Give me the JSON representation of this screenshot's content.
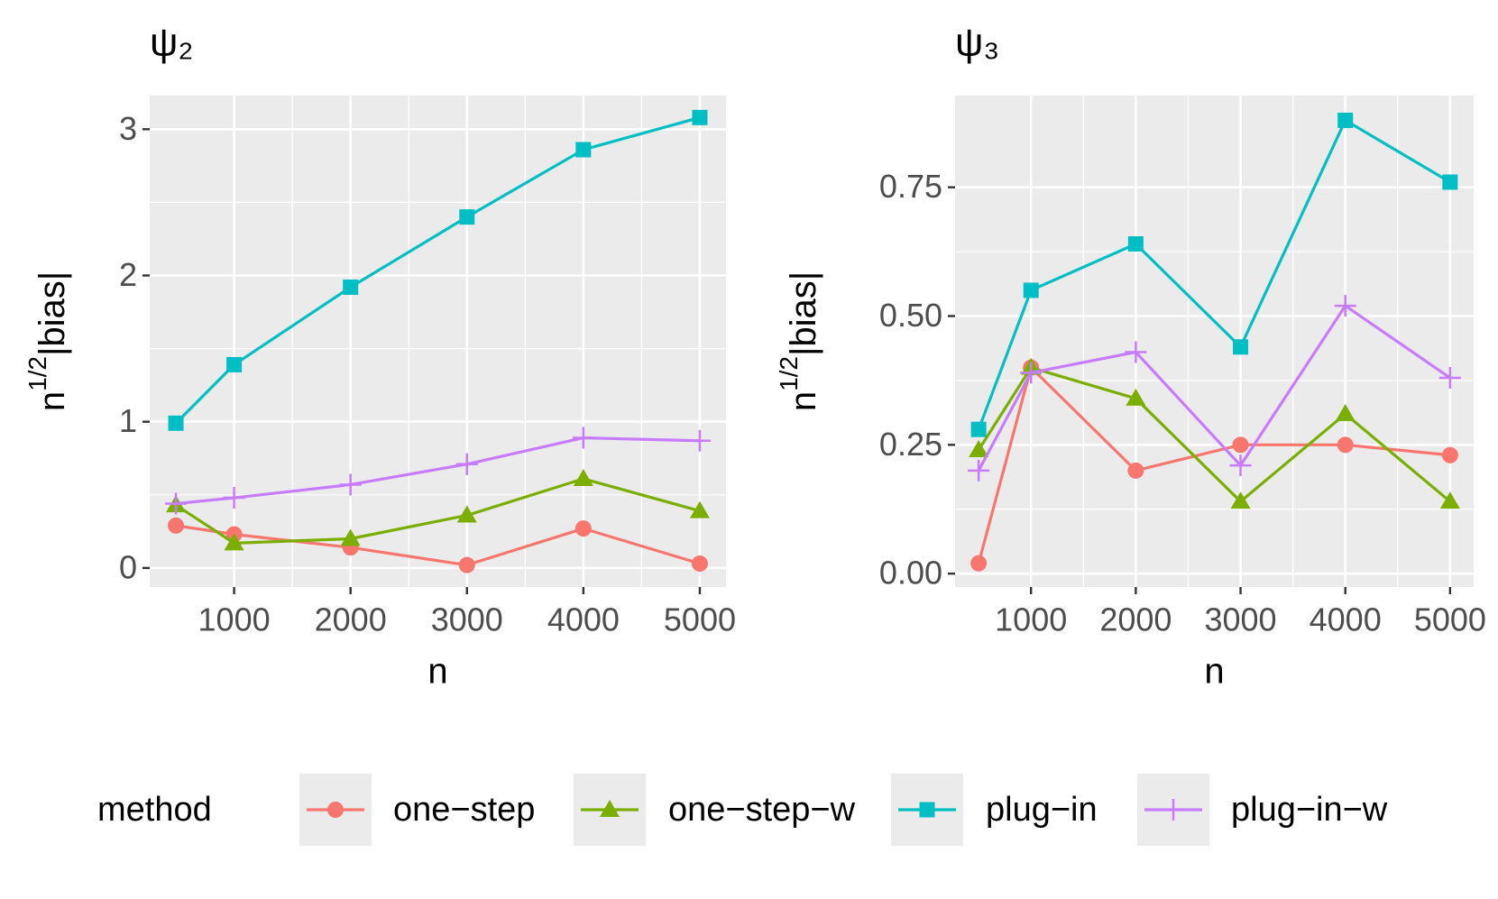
{
  "chart_data": [
    {
      "type": "line",
      "title": "ψ₂",
      "x_label": "n",
      "y_label": {
        "base": "n",
        "superscript": "1/2",
        "text": "|bias|"
      },
      "x": [
        500,
        1000,
        2000,
        3000,
        4000,
        5000
      ],
      "xlim": [
        275,
        5225
      ],
      "xticks": [
        1000,
        2000,
        3000,
        4000,
        5000
      ],
      "ylim": [
        -0.13,
        3.23
      ],
      "yticks": [
        0,
        1,
        2,
        3
      ],
      "grid": true,
      "series": [
        {
          "name": "one−step",
          "color": "#F8766D",
          "shape": "circle",
          "values": [
            0.29,
            0.23,
            0.14,
            0.02,
            0.27,
            0.03
          ]
        },
        {
          "name": "one−step−w",
          "color": "#7CAE00",
          "shape": "triangle",
          "values": [
            0.43,
            0.17,
            0.2,
            0.36,
            0.61,
            0.39
          ]
        },
        {
          "name": "plug−in",
          "color": "#00BFC4",
          "shape": "square",
          "values": [
            0.99,
            1.39,
            1.92,
            2.4,
            2.86,
            3.08
          ]
        },
        {
          "name": "plug−in−w",
          "color": "#C77CFF",
          "shape": "plus",
          "values": [
            0.44,
            0.48,
            0.57,
            0.71,
            0.89,
            0.87
          ]
        }
      ]
    },
    {
      "type": "line",
      "title": "ψ₃",
      "x_label": "n",
      "y_label": {
        "base": "n",
        "superscript": "1/2",
        "text": "|bias|"
      },
      "x": [
        500,
        1000,
        2000,
        3000,
        4000,
        5000
      ],
      "xlim": [
        275,
        5225
      ],
      "xticks": [
        1000,
        2000,
        3000,
        4000,
        5000
      ],
      "ylim": [
        -0.026,
        0.928
      ],
      "yticks": [
        {
          "value": 0,
          "label": "0.00"
        },
        {
          "value": 0.25,
          "label": "0.25"
        },
        {
          "value": 0.5,
          "label": "0.50"
        },
        {
          "value": 0.75,
          "label": "0.75"
        }
      ],
      "grid": true,
      "series": [
        {
          "name": "one−step",
          "color": "#F8766D",
          "shape": "circle",
          "values": [
            0.02,
            0.4,
            0.2,
            0.25,
            0.25,
            0.23
          ]
        },
        {
          "name": "one−step−w",
          "color": "#7CAE00",
          "shape": "triangle",
          "values": [
            0.24,
            0.4,
            0.34,
            0.14,
            0.31,
            0.14
          ]
        },
        {
          "name": "plug−in",
          "color": "#00BFC4",
          "shape": "square",
          "values": [
            0.28,
            0.55,
            0.64,
            0.44,
            0.88,
            0.76
          ]
        },
        {
          "name": "plug−in−w",
          "color": "#C77CFF",
          "shape": "plus",
          "values": [
            0.2,
            0.39,
            0.43,
            0.21,
            0.52,
            0.38
          ]
        }
      ]
    }
  ],
  "legend": {
    "title": "method",
    "position": "bottom"
  }
}
